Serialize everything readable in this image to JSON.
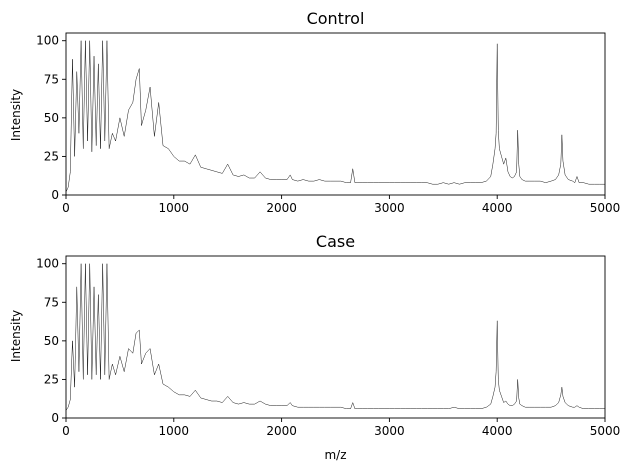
{
  "chart_data": [
    {
      "type": "line",
      "title": "Control",
      "xlabel": "",
      "ylabel": "Intensity",
      "xlim": [
        0,
        5000
      ],
      "ylim": [
        0,
        105
      ],
      "xticks": [
        0,
        1000,
        2000,
        3000,
        4000,
        5000
      ],
      "yticks": [
        0,
        25,
        50,
        75,
        100
      ],
      "grid": false,
      "series": [
        {
          "x": [
            0,
            20,
            40,
            60,
            80,
            100,
            120,
            140,
            160,
            180,
            200,
            220,
            240,
            260,
            280,
            300,
            320,
            340,
            360,
            380,
            400,
            430,
            460,
            500,
            540,
            580,
            620,
            650,
            680,
            700,
            740,
            780,
            820,
            860,
            900,
            950,
            1000,
            1050,
            1100,
            1150,
            1200,
            1250,
            1300,
            1350,
            1400,
            1450,
            1500,
            1550,
            1600,
            1650,
            1700,
            1750,
            1800,
            1850,
            1900,
            1950,
            2000,
            2050,
            2080,
            2100,
            2150,
            2200,
            2250,
            2300,
            2350,
            2400,
            2450,
            2500,
            2550,
            2600,
            2640,
            2660,
            2680,
            2700,
            2750,
            2800,
            2850,
            2900,
            2950,
            3000,
            3050,
            3100,
            3150,
            3200,
            3250,
            3300,
            3350,
            3400,
            3450,
            3500,
            3550,
            3600,
            3650,
            3700,
            3750,
            3800,
            3850,
            3900,
            3940,
            3960,
            3980,
            3990,
            4000,
            4010,
            4020,
            4040,
            4060,
            4080,
            4100,
            4120,
            4140,
            4160,
            4180,
            4190,
            4200,
            4210,
            4230,
            4260,
            4300,
            4350,
            4400,
            4450,
            4500,
            4540,
            4570,
            4590,
            4600,
            4610,
            4630,
            4660,
            4700,
            4720,
            4740,
            4760,
            4800,
            4850,
            4900,
            4950,
            5000
          ],
          "values": [
            2,
            5,
            15,
            88,
            25,
            80,
            40,
            100,
            30,
            100,
            35,
            100,
            28,
            90,
            32,
            85,
            30,
            100,
            35,
            100,
            30,
            40,
            35,
            50,
            38,
            55,
            60,
            75,
            82,
            45,
            55,
            70,
            38,
            60,
            32,
            30,
            25,
            22,
            22,
            20,
            26,
            18,
            17,
            16,
            15,
            14,
            20,
            13,
            12,
            13,
            11,
            11,
            15,
            11,
            10,
            10,
            10,
            10,
            13,
            10,
            9,
            10,
            9,
            9,
            10,
            9,
            9,
            9,
            9,
            8,
            8,
            17,
            8,
            8,
            8,
            8,
            8,
            8,
            8,
            8,
            8,
            8,
            8,
            8,
            8,
            8,
            8,
            7,
            7,
            8,
            7,
            8,
            7,
            8,
            8,
            8,
            8,
            9,
            12,
            20,
            30,
            40,
            98,
            42,
            30,
            25,
            20,
            24,
            15,
            12,
            11,
            12,
            15,
            42,
            20,
            12,
            10,
            9,
            9,
            9,
            9,
            8,
            9,
            10,
            13,
            20,
            39,
            22,
            13,
            10,
            9,
            8,
            12,
            8,
            8,
            7,
            7,
            7,
            7
          ]
        }
      ]
    },
    {
      "type": "line",
      "title": "Case",
      "xlabel": "m/z",
      "ylabel": "Intensity",
      "xlim": [
        0,
        5000
      ],
      "ylim": [
        0,
        105
      ],
      "xticks": [
        0,
        1000,
        2000,
        3000,
        4000,
        5000
      ],
      "yticks": [
        0,
        25,
        50,
        75,
        100
      ],
      "grid": false,
      "series": [
        {
          "x": [
            0,
            20,
            40,
            60,
            80,
            100,
            120,
            140,
            160,
            180,
            200,
            220,
            240,
            260,
            280,
            300,
            320,
            340,
            360,
            380,
            400,
            430,
            460,
            500,
            540,
            580,
            620,
            650,
            680,
            700,
            740,
            780,
            820,
            860,
            900,
            950,
            1000,
            1050,
            1100,
            1150,
            1200,
            1250,
            1300,
            1350,
            1400,
            1450,
            1500,
            1550,
            1600,
            1650,
            1700,
            1750,
            1800,
            1850,
            1900,
            1950,
            2000,
            2050,
            2080,
            2100,
            2150,
            2200,
            2250,
            2300,
            2350,
            2400,
            2450,
            2500,
            2550,
            2600,
            2640,
            2660,
            2680,
            2700,
            2750,
            2800,
            2850,
            2900,
            2950,
            3000,
            3050,
            3100,
            3150,
            3200,
            3250,
            3300,
            3350,
            3400,
            3450,
            3500,
            3550,
            3600,
            3650,
            3700,
            3750,
            3800,
            3850,
            3900,
            3940,
            3960,
            3980,
            3990,
            4000,
            4010,
            4020,
            4040,
            4060,
            4080,
            4100,
            4120,
            4140,
            4160,
            4180,
            4190,
            4200,
            4210,
            4230,
            4260,
            4300,
            4350,
            4400,
            4450,
            4500,
            4540,
            4570,
            4590,
            4600,
            4610,
            4630,
            4660,
            4700,
            4720,
            4740,
            4760,
            4800,
            4850,
            4900,
            4950,
            5000
          ],
          "values": [
            5,
            7,
            12,
            50,
            20,
            85,
            30,
            100,
            25,
            100,
            28,
            100,
            25,
            85,
            28,
            80,
            25,
            100,
            28,
            100,
            25,
            35,
            28,
            40,
            30,
            45,
            42,
            55,
            57,
            35,
            42,
            45,
            28,
            35,
            22,
            20,
            17,
            15,
            15,
            14,
            18,
            13,
            12,
            11,
            11,
            10,
            14,
            10,
            9,
            10,
            9,
            9,
            11,
            9,
            8,
            8,
            8,
            8,
            10,
            8,
            7,
            7,
            7,
            7,
            7,
            7,
            7,
            7,
            7,
            6,
            6,
            10,
            6,
            6,
            6,
            6,
            6,
            6,
            6,
            6,
            6,
            6,
            6,
            6,
            6,
            6,
            6,
            6,
            6,
            6,
            6,
            7,
            6,
            6,
            6,
            6,
            6,
            7,
            9,
            14,
            20,
            30,
            63,
            25,
            18,
            14,
            10,
            11,
            9,
            8,
            8,
            9,
            11,
            25,
            13,
            9,
            8,
            7,
            7,
            7,
            7,
            7,
            7,
            8,
            10,
            15,
            20,
            14,
            10,
            8,
            7,
            7,
            8,
            7,
            6,
            6,
            6,
            6,
            6
          ]
        }
      ]
    }
  ]
}
